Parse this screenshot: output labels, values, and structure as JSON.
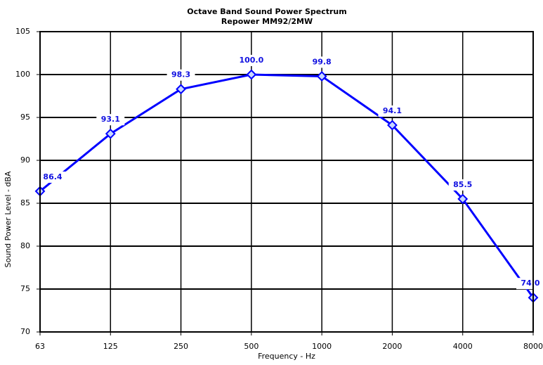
{
  "chart_data": {
    "type": "line",
    "title": "Octave Band Sound Power Spectrum",
    "subtitle": "Repower MM92/2MW",
    "x_label": "Frequency - Hz",
    "y_label": "Sound Power Level - dBA",
    "categories": [
      "63",
      "125",
      "250",
      "500",
      "1000",
      "2000",
      "4000",
      "8000"
    ],
    "values": [
      86.4,
      93.1,
      98.3,
      100.0,
      99.8,
      94.1,
      85.5,
      74.0
    ],
    "value_labels": [
      "86.4",
      "93.1",
      "98.3",
      "100.0",
      "99.8",
      "94.1",
      "85.5",
      "74.0"
    ],
    "color": "#0000ff",
    "ylim": [
      70,
      105
    ],
    "yticks": [
      70,
      75,
      80,
      85,
      90,
      95,
      100,
      105
    ],
    "grid": true
  }
}
